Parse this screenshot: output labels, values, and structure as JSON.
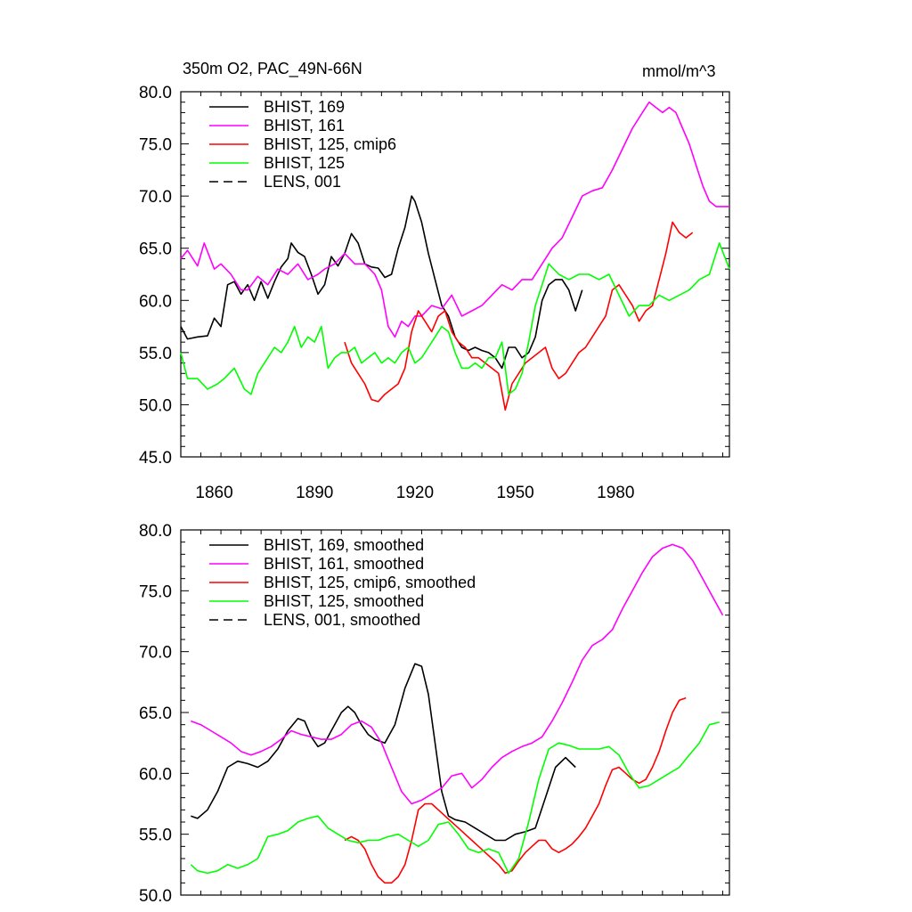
{
  "header": {
    "title_left": "350m O2, PAC_49N-66N",
    "title_right": "mmol/m^3"
  },
  "colors": {
    "bhist_169": "#000000",
    "bhist_161": "#ff00ff",
    "bhist_125_cmip6": "#ff0000",
    "bhist_125": "#00ff00",
    "lens_001": "#000000"
  },
  "chart_data": [
    {
      "type": "line",
      "title": "350m O2, PAC_49N-66N",
      "units": "mmol/m^3",
      "xlim": [
        1850,
        2014
      ],
      "ylim": [
        45,
        80
      ],
      "xticks": [
        1860,
        1890,
        1920,
        1950,
        1980
      ],
      "xtick_labels": [
        "1860",
        "1890",
        "1920",
        "1950",
        "1980"
      ],
      "yticks": [
        45,
        50,
        55,
        60,
        65,
        70,
        75,
        80
      ],
      "ytick_labels": [
        "45.0",
        "50.0",
        "55.0",
        "60.0",
        "65.0",
        "70.0",
        "75.0",
        "80.0"
      ],
      "legend_position": "top-left",
      "legend": [
        "BHIST, 169",
        "BHIST, 161",
        "BHIST, 125, cmip6",
        "BHIST, 125",
        "LENS, 001"
      ],
      "series": [
        {
          "name": "BHIST, 169",
          "color": "#000000",
          "dash": "solid",
          "x": [
            1850,
            1852,
            1855,
            1858,
            1860,
            1862,
            1864,
            1866,
            1868,
            1870,
            1872,
            1874,
            1876,
            1878,
            1880,
            1882,
            1883,
            1885,
            1887,
            1889,
            1891,
            1893,
            1895,
            1897,
            1899,
            1901,
            1903,
            1905,
            1907,
            1909,
            1911,
            1913,
            1915,
            1917,
            1919,
            1920,
            1922,
            1924,
            1926,
            1928,
            1930,
            1932,
            1934,
            1936,
            1938,
            1940,
            1942,
            1944,
            1946,
            1948,
            1950,
            1952,
            1954,
            1956,
            1958,
            1960,
            1962,
            1964,
            1966,
            1968,
            1970
          ],
          "y": [
            57.5,
            56.3,
            56.5,
            56.6,
            58.3,
            57.5,
            61.5,
            61.8,
            60.6,
            61.5,
            60.0,
            61.8,
            60.2,
            61.8,
            63.2,
            64.0,
            65.5,
            64.6,
            64.2,
            62.5,
            60.6,
            61.5,
            64.2,
            63.3,
            64.5,
            66.4,
            65.5,
            63.5,
            63.2,
            63.1,
            62.2,
            62.5,
            65.0,
            67.0,
            70.0,
            69.5,
            67.5,
            64.5,
            62.0,
            59.5,
            58.5,
            56.5,
            55.5,
            55.2,
            55.5,
            55.2,
            55.0,
            54.5,
            53.5,
            55.5,
            55.5,
            54.5,
            55.0,
            56.5,
            60.0,
            61.5,
            62.0,
            62.0,
            61.0,
            59.0,
            61.0
          ]
        },
        {
          "name": "BHIST, 161",
          "color": "#ff00ff",
          "dash": "solid",
          "x": [
            1850,
            1852,
            1855,
            1857,
            1860,
            1862,
            1865,
            1868,
            1870,
            1873,
            1876,
            1879,
            1882,
            1885,
            1888,
            1891,
            1893,
            1896,
            1899,
            1902,
            1905,
            1908,
            1910,
            1912,
            1914,
            1916,
            1918,
            1920,
            1922,
            1925,
            1928,
            1931,
            1934,
            1937,
            1940,
            1943,
            1946,
            1949,
            1952,
            1955,
            1958,
            1961,
            1964,
            1967,
            1970,
            1973,
            1976,
            1979,
            1982,
            1985,
            1988,
            1990,
            1992,
            1994,
            1996,
            1998,
            2000,
            2002,
            2004,
            2006,
            2008,
            2010,
            2012,
            2014
          ],
          "y": [
            64.0,
            64.8,
            63.3,
            65.5,
            63.0,
            63.5,
            62.5,
            61.0,
            61.0,
            62.3,
            61.5,
            63.0,
            62.5,
            63.5,
            62.0,
            62.5,
            63.0,
            63.5,
            64.5,
            63.5,
            63.5,
            62.5,
            61.0,
            57.5,
            56.5,
            58.0,
            57.5,
            58.5,
            58.5,
            59.5,
            59.2,
            60.5,
            58.5,
            59.0,
            59.5,
            60.5,
            61.5,
            61.0,
            62.0,
            62.0,
            63.5,
            65.0,
            66.0,
            68.0,
            70.0,
            70.5,
            70.8,
            72.5,
            74.5,
            76.5,
            78.0,
            79.0,
            78.5,
            78.0,
            78.5,
            78.0,
            76.5,
            75.0,
            73.0,
            71.0,
            69.5,
            69.0,
            69.0,
            69.0
          ]
        },
        {
          "name": "BHIST, 125, cmip6",
          "color": "#ff0000",
          "dash": "solid",
          "x": [
            1899,
            1901,
            1903,
            1905,
            1907,
            1909,
            1911,
            1913,
            1915,
            1917,
            1919,
            1921,
            1923,
            1925,
            1927,
            1929,
            1931,
            1933,
            1935,
            1937,
            1939,
            1941,
            1943,
            1945,
            1947,
            1949,
            1951,
            1953,
            1955,
            1957,
            1959,
            1961,
            1963,
            1965,
            1967,
            1969,
            1971,
            1973,
            1975,
            1977,
            1979,
            1981,
            1983,
            1985,
            1987,
            1989,
            1991,
            1993,
            1995,
            1997,
            1999,
            2001,
            2003
          ],
          "y": [
            56.0,
            54.0,
            53.0,
            52.0,
            50.5,
            50.3,
            51.0,
            51.5,
            52.0,
            53.5,
            57.0,
            59.0,
            58.0,
            57.0,
            58.5,
            59.0,
            57.0,
            56.0,
            55.5,
            54.5,
            54.5,
            54.0,
            53.5,
            53.0,
            49.5,
            52.0,
            53.0,
            54.0,
            54.5,
            55.0,
            55.5,
            53.5,
            52.5,
            53.0,
            54.0,
            55.0,
            55.5,
            56.5,
            57.5,
            58.5,
            61.0,
            61.5,
            60.5,
            59.5,
            58.0,
            59.0,
            59.5,
            62.0,
            64.5,
            67.5,
            66.5,
            66.0,
            66.5
          ]
        },
        {
          "name": "BHIST, 125",
          "color": "#00ff00",
          "dash": "solid",
          "x": [
            1850,
            1852,
            1855,
            1858,
            1861,
            1863,
            1866,
            1869,
            1871,
            1873,
            1876,
            1878,
            1880,
            1882,
            1884,
            1886,
            1888,
            1890,
            1892,
            1894,
            1896,
            1898,
            1900,
            1902,
            1904,
            1906,
            1908,
            1910,
            1912,
            1914,
            1916,
            1918,
            1920,
            1922,
            1924,
            1926,
            1928,
            1930,
            1932,
            1934,
            1936,
            1938,
            1940,
            1942,
            1944,
            1946,
            1948,
            1950,
            1952,
            1954,
            1956,
            1958,
            1960,
            1963,
            1966,
            1969,
            1972,
            1975,
            1978,
            1981,
            1984,
            1987,
            1990,
            1993,
            1996,
            1999,
            2002,
            2005,
            2008,
            2011,
            2014
          ],
          "y": [
            55.0,
            52.5,
            52.5,
            51.5,
            52.0,
            52.5,
            53.5,
            51.5,
            51.0,
            53.0,
            54.5,
            55.5,
            55.0,
            56.0,
            57.5,
            55.5,
            56.5,
            56.0,
            57.5,
            53.5,
            54.5,
            55.0,
            55.0,
            55.5,
            54.0,
            54.5,
            55.0,
            54.0,
            54.5,
            54.0,
            55.0,
            55.5,
            54.0,
            54.5,
            55.5,
            56.5,
            57.5,
            57.0,
            55.0,
            53.5,
            53.5,
            54.0,
            53.5,
            54.5,
            54.5,
            56.0,
            51.0,
            51.5,
            53.0,
            56.0,
            59.5,
            61.5,
            63.5,
            62.5,
            62.0,
            62.5,
            62.5,
            62.0,
            62.5,
            60.5,
            58.5,
            59.5,
            59.5,
            60.5,
            60.0,
            60.5,
            61.0,
            62.0,
            62.5,
            65.5,
            63.0
          ]
        }
      ]
    },
    {
      "type": "line",
      "xlim": [
        1850,
        2014
      ],
      "ylim": [
        50,
        80
      ],
      "xticks": [
        1860,
        1890,
        1920,
        1950,
        1980
      ],
      "yticks": [
        50,
        55,
        60,
        65,
        70,
        75,
        80
      ],
      "ytick_labels": [
        "50.0",
        "55.0",
        "60.0",
        "65.0",
        "70.0",
        "75.0",
        "80.0"
      ],
      "legend_position": "top-left",
      "legend": [
        "BHIST, 169, smoothed",
        "BHIST, 161, smoothed",
        "BHIST, 125, cmip6, smoothed",
        "BHIST, 125, smoothed",
        "LENS, 001, smoothed"
      ],
      "series": [
        {
          "name": "BHIST, 169, smoothed",
          "color": "#000000",
          "dash": "solid",
          "x": [
            1853,
            1855,
            1858,
            1861,
            1864,
            1867,
            1870,
            1873,
            1876,
            1879,
            1882,
            1885,
            1887,
            1889,
            1891,
            1893,
            1895,
            1898,
            1900,
            1902,
            1904,
            1906,
            1908,
            1911,
            1914,
            1917,
            1920,
            1922,
            1924,
            1926,
            1928,
            1930,
            1932,
            1935,
            1938,
            1941,
            1944,
            1947,
            1950,
            1953,
            1956,
            1959,
            1962,
            1965,
            1968
          ],
          "y": [
            56.5,
            56.3,
            57.0,
            58.5,
            60.5,
            61.0,
            60.8,
            60.5,
            61.0,
            62.0,
            63.5,
            64.5,
            64.3,
            63.0,
            62.2,
            62.5,
            63.5,
            65.0,
            65.5,
            65.0,
            64.0,
            63.2,
            62.8,
            62.5,
            64.0,
            67.0,
            69.0,
            68.8,
            66.5,
            62.5,
            58.5,
            56.5,
            56.2,
            56.0,
            55.5,
            55.0,
            54.5,
            54.5,
            55.0,
            55.2,
            55.5,
            58.0,
            60.5,
            61.3,
            60.5
          ]
        },
        {
          "name": "BHIST, 161, smoothed",
          "color": "#ff00ff",
          "dash": "solid",
          "x": [
            1853,
            1856,
            1859,
            1862,
            1865,
            1868,
            1871,
            1874,
            1877,
            1880,
            1883,
            1886,
            1889,
            1892,
            1895,
            1898,
            1901,
            1904,
            1907,
            1910,
            1913,
            1916,
            1919,
            1922,
            1925,
            1928,
            1931,
            1934,
            1937,
            1940,
            1943,
            1946,
            1949,
            1952,
            1955,
            1958,
            1961,
            1964,
            1967,
            1970,
            1973,
            1976,
            1979,
            1982,
            1985,
            1988,
            1991,
            1994,
            1997,
            2000,
            2003,
            2006,
            2009,
            2012
          ],
          "y": [
            64.3,
            64.0,
            63.5,
            63.0,
            62.5,
            61.8,
            61.5,
            61.8,
            62.2,
            62.8,
            63.5,
            63.2,
            63.0,
            62.8,
            62.8,
            63.2,
            64.0,
            64.3,
            63.8,
            62.5,
            60.5,
            58.5,
            57.5,
            57.8,
            58.3,
            58.8,
            59.8,
            60.0,
            58.8,
            59.5,
            60.5,
            61.3,
            61.8,
            62.2,
            62.5,
            63.0,
            64.3,
            65.8,
            67.5,
            69.3,
            70.5,
            71.0,
            71.8,
            73.5,
            75.0,
            76.5,
            77.8,
            78.5,
            78.8,
            78.5,
            77.5,
            76.0,
            74.5,
            73.0
          ]
        },
        {
          "name": "BHIST, 125, cmip6, smoothed",
          "color": "#ff0000",
          "dash": "solid",
          "x": [
            1899,
            1901,
            1903,
            1905,
            1907,
            1909,
            1911,
            1913,
            1915,
            1917,
            1919,
            1921,
            1923,
            1925,
            1927,
            1929,
            1931,
            1933,
            1935,
            1937,
            1939,
            1941,
            1943,
            1945,
            1947,
            1949,
            1951,
            1953,
            1955,
            1957,
            1959,
            1961,
            1963,
            1965,
            1967,
            1969,
            1971,
            1973,
            1975,
            1977,
            1979,
            1981,
            1983,
            1985,
            1987,
            1989,
            1991,
            1993,
            1995,
            1997,
            1999,
            2001
          ],
          "y": [
            54.5,
            54.8,
            54.5,
            53.8,
            52.5,
            51.5,
            51.0,
            51.0,
            51.5,
            52.5,
            54.5,
            57.0,
            57.5,
            57.5,
            57.0,
            56.5,
            56.0,
            55.5,
            55.0,
            54.5,
            54.0,
            53.5,
            53.0,
            52.5,
            51.8,
            52.0,
            52.8,
            53.5,
            54.0,
            54.5,
            54.5,
            53.8,
            53.5,
            53.8,
            54.2,
            54.8,
            55.5,
            56.5,
            57.5,
            59.0,
            60.3,
            60.5,
            60.0,
            59.5,
            59.2,
            59.5,
            60.5,
            61.8,
            63.5,
            65.0,
            66.0,
            66.2
          ]
        },
        {
          "name": "BHIST, 125, smoothed",
          "color": "#00ff00",
          "dash": "solid",
          "x": [
            1853,
            1855,
            1858,
            1861,
            1864,
            1867,
            1870,
            1873,
            1876,
            1879,
            1882,
            1885,
            1888,
            1891,
            1894,
            1897,
            1900,
            1903,
            1906,
            1909,
            1912,
            1915,
            1918,
            1921,
            1924,
            1927,
            1930,
            1933,
            1936,
            1939,
            1942,
            1945,
            1948,
            1951,
            1954,
            1957,
            1960,
            1963,
            1966,
            1969,
            1972,
            1975,
            1978,
            1981,
            1984,
            1987,
            1990,
            1993,
            1996,
            1999,
            2002,
            2005,
            2008,
            2011
          ],
          "y": [
            52.5,
            52.0,
            51.8,
            52.0,
            52.5,
            52.2,
            52.5,
            53.0,
            54.8,
            55.0,
            55.3,
            56.0,
            56.3,
            56.5,
            55.5,
            55.0,
            54.5,
            54.3,
            54.5,
            54.5,
            54.8,
            55.0,
            54.5,
            54.0,
            54.5,
            55.8,
            56.0,
            55.0,
            53.8,
            53.5,
            53.8,
            53.5,
            51.8,
            53.0,
            56.0,
            59.5,
            62.0,
            62.5,
            62.3,
            62.0,
            62.0,
            62.0,
            62.2,
            61.5,
            60.0,
            58.8,
            59.0,
            59.5,
            60.0,
            60.5,
            61.5,
            62.5,
            64.0,
            64.2
          ]
        }
      ]
    }
  ]
}
